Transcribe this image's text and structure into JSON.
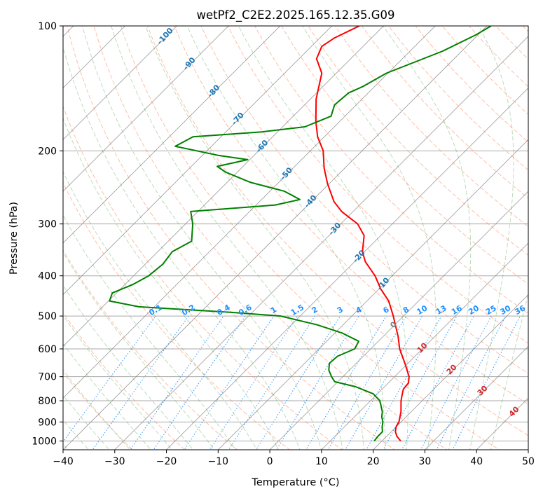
{
  "chart_data": {
    "type": "skew-t",
    "title": "wetPf2_C2E2.2025.165.12.35.G09",
    "xlabel": "Temperature (°C)",
    "ylabel": "Pressure (hPa)",
    "xlim": [
      -40,
      50
    ],
    "ylim": [
      1050,
      100
    ],
    "y_scale": "log",
    "skew": "isotherms at 45°",
    "grid": true,
    "x_ticks": [
      "−40",
      "−30",
      "−20",
      "−10",
      "0",
      "10",
      "20",
      "30",
      "40",
      "50"
    ],
    "y_ticks": [
      "100",
      "200",
      "300",
      "400",
      "500",
      "600",
      "700",
      "800",
      "900",
      "1000"
    ],
    "colors": {
      "temperature": "#ff0000",
      "dewpoint": "#008000",
      "dry_adiabat": "#ff7f50",
      "moist_adiabat": "#228b22",
      "mixing_ratio": "#1e90ff",
      "isotherm": "#808080",
      "grid": "#a9a9a9",
      "dry_adiabat_labels": "#1f77b4",
      "isotherm_labels_warm": "#d62728",
      "isotherm_labels_zero": "#808080"
    },
    "series": [
      {
        "name": "temperature",
        "points": [
          {
            "p": 1000,
            "t": 23.6
          },
          {
            "p": 975,
            "t": 22.0
          },
          {
            "p": 950,
            "t": 20.8
          },
          {
            "p": 925,
            "t": 20.0
          },
          {
            "p": 900,
            "t": 19.6
          },
          {
            "p": 850,
            "t": 18.0
          },
          {
            "p": 800,
            "t": 15.9
          },
          {
            "p": 775,
            "t": 15.0
          },
          {
            "p": 750,
            "t": 14.1
          },
          {
            "p": 725,
            "t": 13.9
          },
          {
            "p": 700,
            "t": 12.8
          },
          {
            "p": 650,
            "t": 9.4
          },
          {
            "p": 600,
            "t": 5.6
          },
          {
            "p": 560,
            "t": 2.9
          },
          {
            "p": 500,
            "t": -2.0
          },
          {
            "p": 460,
            "t": -5.8
          },
          {
            "p": 430,
            "t": -9.7
          },
          {
            "p": 400,
            "t": -13.3
          },
          {
            "p": 370,
            "t": -17.9
          },
          {
            "p": 350,
            "t": -20.4
          },
          {
            "p": 320,
            "t": -23.2
          },
          {
            "p": 300,
            "t": -26.7
          },
          {
            "p": 280,
            "t": -32.2
          },
          {
            "p": 265,
            "t": -35.6
          },
          {
            "p": 240,
            "t": -40.3
          },
          {
            "p": 220,
            "t": -44.0
          },
          {
            "p": 200,
            "t": -47.5
          },
          {
            "p": 185,
            "t": -51.3
          },
          {
            "p": 170,
            "t": -54.6
          },
          {
            "p": 150,
            "t": -58.9
          },
          {
            "p": 130,
            "t": -62.8
          },
          {
            "p": 120,
            "t": -66.6
          },
          {
            "p": 112,
            "t": -68.0
          },
          {
            "p": 107,
            "t": -67.2
          },
          {
            "p": 100,
            "t": -64.7
          }
        ]
      },
      {
        "name": "dewpoint",
        "points": [
          {
            "p": 1000,
            "t": 18.5
          },
          {
            "p": 975,
            "t": 18.3
          },
          {
            "p": 950,
            "t": 18.3
          },
          {
            "p": 925,
            "t": 17.3
          },
          {
            "p": 900,
            "t": 16.5
          },
          {
            "p": 875,
            "t": 15.3
          },
          {
            "p": 850,
            "t": 14.4
          },
          {
            "p": 800,
            "t": 11.8
          },
          {
            "p": 770,
            "t": 9.2
          },
          {
            "p": 740,
            "t": 4.4
          },
          {
            "p": 720,
            "t": -0.6
          },
          {
            "p": 700,
            "t": -2.2
          },
          {
            "p": 675,
            "t": -4.0
          },
          {
            "p": 650,
            "t": -5.2
          },
          {
            "p": 625,
            "t": -5.0
          },
          {
            "p": 600,
            "t": -3.1
          },
          {
            "p": 575,
            "t": -3.8
          },
          {
            "p": 550,
            "t": -8.5
          },
          {
            "p": 525,
            "t": -15.0
          },
          {
            "p": 500,
            "t": -23.8
          },
          {
            "p": 490,
            "t": -34.0
          },
          {
            "p": 475,
            "t": -53.0
          },
          {
            "p": 460,
            "t": -59.8
          },
          {
            "p": 440,
            "t": -60.8
          },
          {
            "p": 420,
            "t": -58.5
          },
          {
            "p": 400,
            "t": -57.1
          },
          {
            "p": 375,
            "t": -56.6
          },
          {
            "p": 350,
            "t": -57.2
          },
          {
            "p": 330,
            "t": -55.5
          },
          {
            "p": 300,
            "t": -58.6
          },
          {
            "p": 280,
            "t": -61.4
          },
          {
            "p": 270,
            "t": -46.3
          },
          {
            "p": 262,
            "t": -42.6
          },
          {
            "p": 250,
            "t": -47.3
          },
          {
            "p": 238,
            "t": -55.6
          },
          {
            "p": 225,
            "t": -62.3
          },
          {
            "p": 218,
            "t": -65.0
          },
          {
            "p": 210,
            "t": -60.4
          },
          {
            "p": 205,
            "t": -67.0
          },
          {
            "p": 195,
            "t": -77.0
          },
          {
            "p": 185,
            "t": -75.4
          },
          {
            "p": 180,
            "t": -63.0
          },
          {
            "p": 175,
            "t": -55.7
          },
          {
            "p": 165,
            "t": -52.7
          },
          {
            "p": 155,
            "t": -54.2
          },
          {
            "p": 145,
            "t": -53.8
          },
          {
            "p": 140,
            "t": -52.3
          },
          {
            "p": 130,
            "t": -50.3
          },
          {
            "p": 115,
            "t": -43.7
          },
          {
            "p": 105,
            "t": -40.4
          },
          {
            "p": 100,
            "t": -39.2
          }
        ]
      }
    ],
    "dry_adiabat_labels": [
      "-100",
      "-90",
      "-80",
      "-70",
      "-60",
      "-50",
      "-40",
      "-30",
      "-20",
      "-10"
    ],
    "mixing_ratio_labels": [
      "0.1",
      "0.2",
      "0.4",
      "0.6",
      "1",
      "1.5",
      "2",
      "3",
      "4",
      "6",
      "8",
      "10",
      "13",
      "16",
      "20",
      "25",
      "30",
      "36"
    ],
    "isotherm_labels": [
      "0",
      "10",
      "20",
      "30",
      "40"
    ]
  }
}
